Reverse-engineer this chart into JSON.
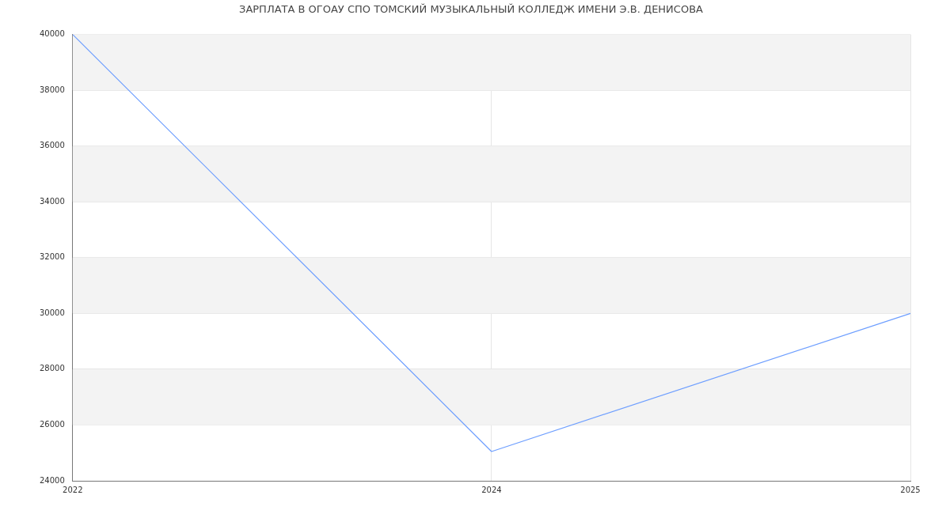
{
  "chart_data": {
    "type": "line",
    "title": "ЗАРПЛАТА В ОГОАУ СПО ТОМСКИЙ МУЗЫКАЛЬНЫЙ КОЛЛЕДЖ ИМЕНИ Э.В. ДЕНИСОВА",
    "categories": [
      "2022",
      "2024",
      "2025"
    ],
    "series": [
      {
        "color": "#6d9eff",
        "values": [
          40000,
          25050,
          30000
        ]
      }
    ],
    "ylim": [
      24000,
      40000
    ],
    "yticks": [
      24000,
      26000,
      28000,
      30000,
      32000,
      34000,
      36000,
      38000,
      40000
    ],
    "grid": true,
    "legend": false,
    "marker": "none",
    "line_style": "solid"
  }
}
